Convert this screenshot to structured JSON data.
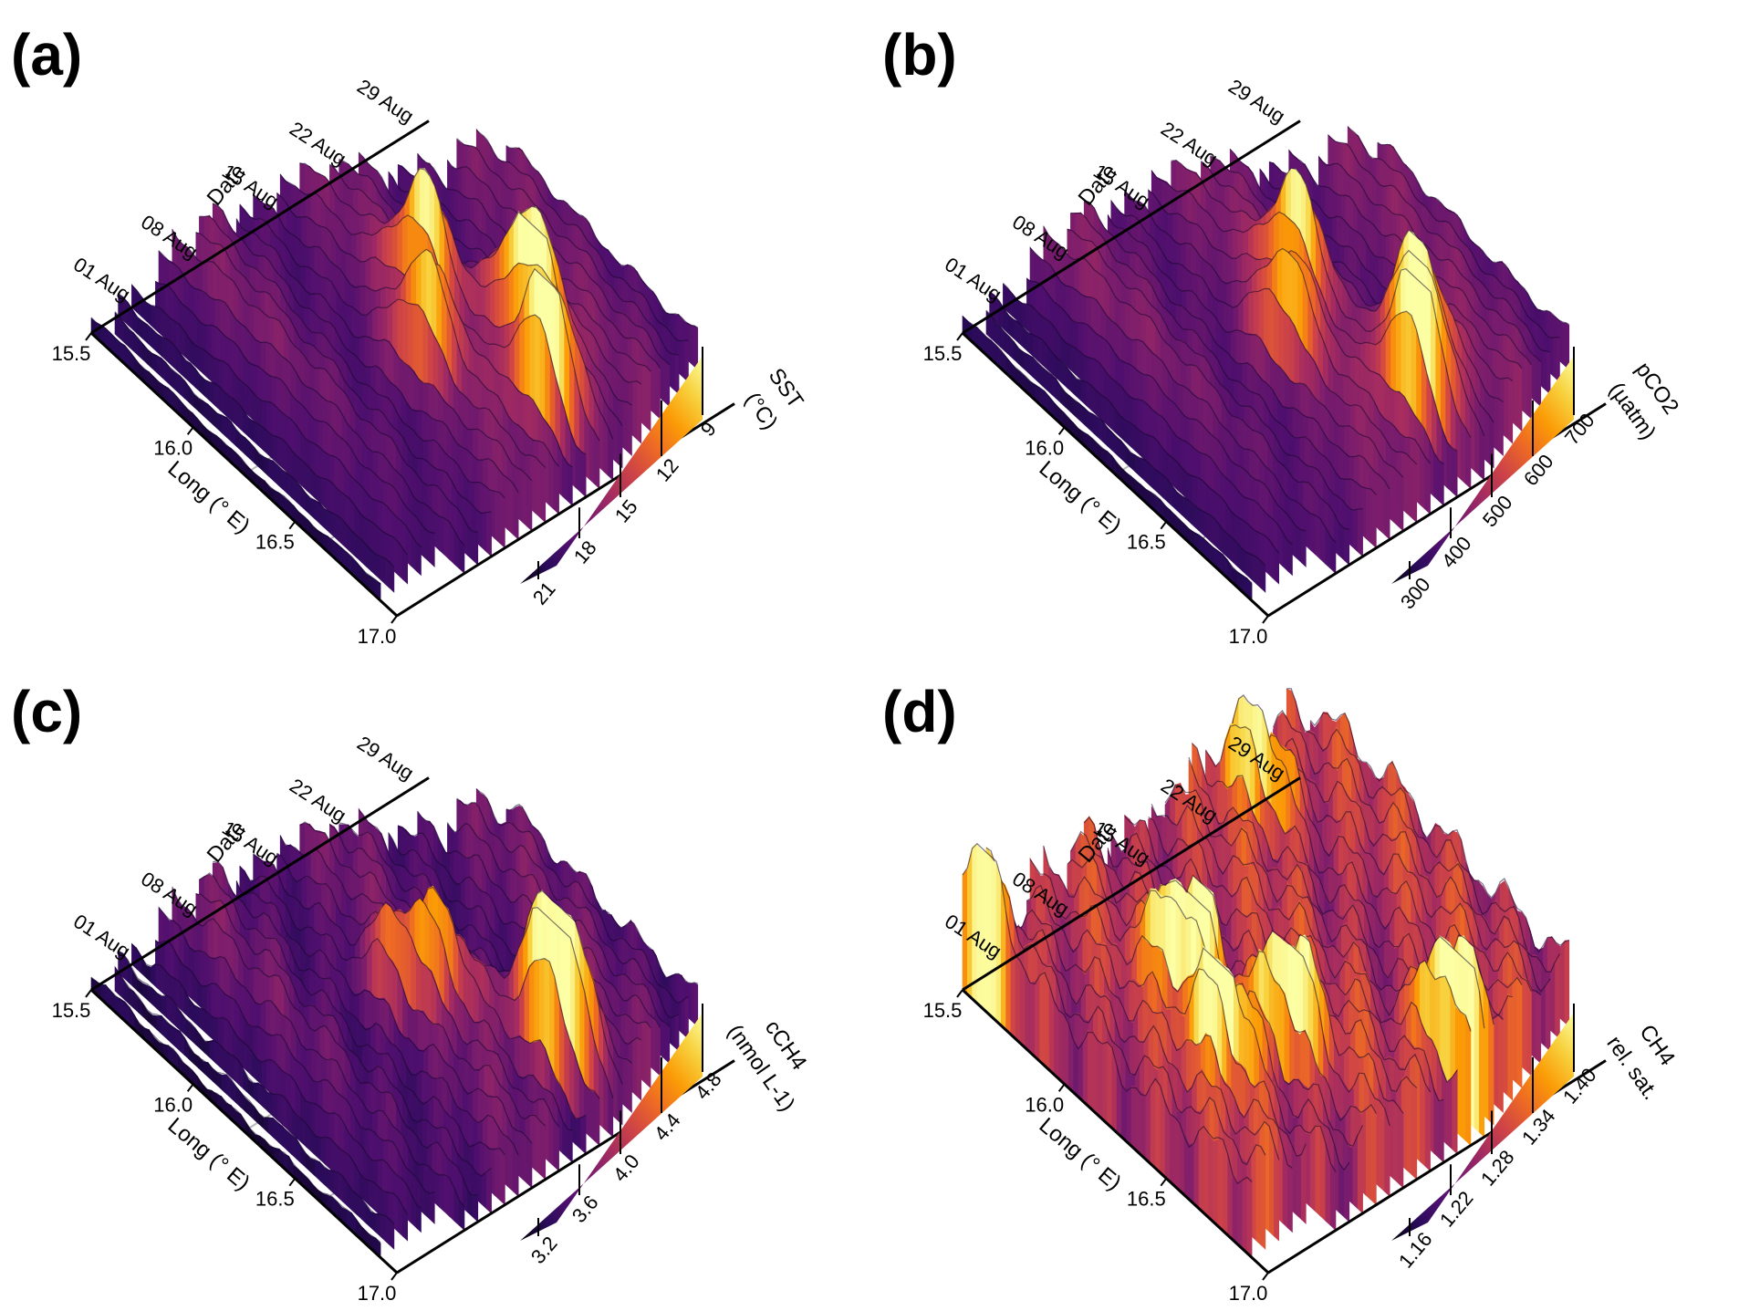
{
  "colors": {
    "colormap": "inferno",
    "stops": [
      "#000004",
      "#2a0b5a",
      "#4f0f6e",
      "#781c6d",
      "#a52c60",
      "#cf4446",
      "#ed6925",
      "#fb9b06",
      "#f7d13d",
      "#fcffa4"
    ],
    "axis": "#000000",
    "grid": "#b8b8b8"
  },
  "chart_data": [
    {
      "panel": "(a)",
      "type": "ridgeline-3d",
      "x": {
        "label": "Long (° E)",
        "ticks": [
          "15.5",
          "16.0",
          "16.5",
          "17.0"
        ],
        "range": [
          15.5,
          17.0
        ]
      },
      "y": {
        "label": "Date",
        "ticks": [
          "01 Aug",
          "08 Aug",
          "15 Aug",
          "22 Aug",
          "29 Aug"
        ]
      },
      "colorbar": {
        "label": "SST",
        "units": "(°C)",
        "ticks": [
          "21",
          "18",
          "15",
          "12",
          "9"
        ]
      },
      "n_transects": 26,
      "hotspots": [
        {
          "transect": 15,
          "long": 16.75,
          "relative_level": 1.0
        },
        {
          "transect": 17,
          "long": 16.55,
          "relative_level": 0.9
        },
        {
          "transect": 15,
          "long": 16.15,
          "relative_level": 0.72
        },
        {
          "transect": 12,
          "long": 16.35,
          "relative_level": 0.6
        },
        {
          "transect": 18,
          "long": 16.4,
          "relative_level": 0.5
        }
      ]
    },
    {
      "panel": "(b)",
      "type": "ridgeline-3d",
      "x": {
        "label": "Long (° E)",
        "ticks": [
          "15.5",
          "16.0",
          "16.5",
          "17.0"
        ],
        "range": [
          15.5,
          17.0
        ]
      },
      "y": {
        "label": "Date",
        "ticks": [
          "01 Aug",
          "08 Aug",
          "15 Aug",
          "22 Aug",
          "29 Aug"
        ]
      },
      "colorbar": {
        "label": "pCO2",
        "units": "(µatm)",
        "ticks": [
          "300",
          "400",
          "500",
          "600",
          "700"
        ]
      },
      "n_transects": 26,
      "hotspots": [
        {
          "transect": 15,
          "long": 16.75,
          "relative_level": 1.0
        },
        {
          "transect": 17,
          "long": 16.6,
          "relative_level": 0.85
        },
        {
          "transect": 15,
          "long": 16.15,
          "relative_level": 0.7
        },
        {
          "transect": 12,
          "long": 16.3,
          "relative_level": 0.55
        }
      ]
    },
    {
      "panel": "(c)",
      "type": "ridgeline-3d",
      "x": {
        "label": "Long (° E)",
        "ticks": [
          "15.5",
          "16.0",
          "16.5",
          "17.0"
        ],
        "range": [
          15.5,
          17.0
        ]
      },
      "y": {
        "label": "Date",
        "ticks": [
          "01 Aug",
          "08 Aug",
          "15 Aug",
          "22 Aug",
          "29 Aug"
        ]
      },
      "colorbar": {
        "label": "cCH4",
        "units": "(nmol L-1)",
        "ticks": [
          "3.2",
          "3.6",
          "4.0",
          "4.4",
          "4.8"
        ]
      },
      "n_transects": 26,
      "hotspots": [
        {
          "transect": 16,
          "long": 16.75,
          "relative_level": 1.0
        },
        {
          "transect": 17,
          "long": 16.6,
          "relative_level": 0.75
        },
        {
          "transect": 14,
          "long": 16.3,
          "relative_level": 0.45
        },
        {
          "transect": 12,
          "long": 16.2,
          "relative_level": 0.4
        }
      ]
    },
    {
      "panel": "(d)",
      "type": "ridgeline-3d",
      "x": {
        "label": "Long (° E)",
        "ticks": [
          "15.5",
          "16.0",
          "16.5",
          "17.0"
        ],
        "range": [
          15.5,
          17.0
        ]
      },
      "y": {
        "label": "Date",
        "ticks": [
          "01 Aug",
          "08 Aug",
          "15 Aug",
          "22 Aug",
          "29 Aug"
        ]
      },
      "colorbar": {
        "label": "CH4",
        "units": "rel. sat.",
        "ticks": [
          "1.16",
          "1.22",
          "1.28",
          "1.34",
          "1.40"
        ]
      },
      "n_transects": 26,
      "hotspots": [
        {
          "transect": 7,
          "long": 16.15,
          "relative_level": 1.0
        },
        {
          "transect": 16,
          "long": 16.85,
          "relative_level": 0.95
        },
        {
          "transect": 9,
          "long": 16.5,
          "relative_level": 0.8
        },
        {
          "transect": 5,
          "long": 16.45,
          "relative_level": 0.7
        },
        {
          "transect": 19,
          "long": 15.7,
          "relative_level": 0.65
        },
        {
          "transect": 0,
          "long": 15.6,
          "relative_level": 0.6
        }
      ]
    }
  ]
}
